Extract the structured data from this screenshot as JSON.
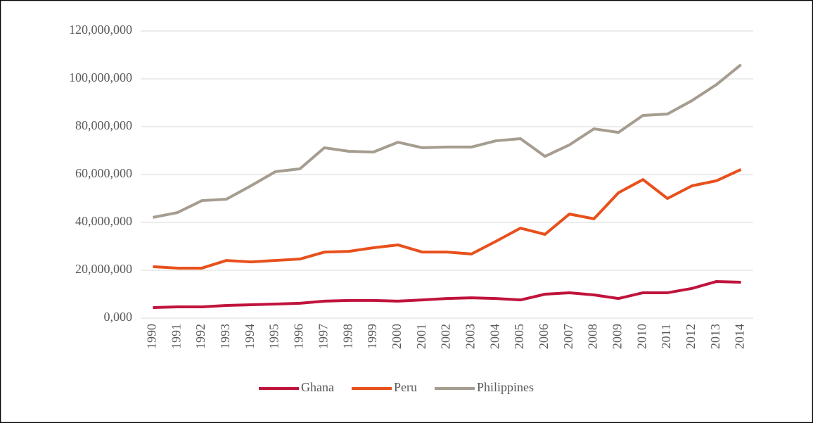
{
  "chart_data": {
    "type": "line",
    "categories": [
      "1990",
      "1991",
      "1992",
      "1993",
      "1994",
      "1995",
      "1996",
      "1997",
      "1998",
      "1999",
      "2000",
      "2001",
      "2002",
      "2003",
      "2004",
      "2005",
      "2006",
      "2007",
      "2008",
      "2009",
      "2010",
      "2011",
      "2012",
      "2013",
      "2014"
    ],
    "series": [
      {
        "name": "Ghana",
        "color": "#c0143c",
        "values": [
          4400000,
          4700000,
          4700000,
          5300000,
          5600000,
          5900000,
          6200000,
          7100000,
          7400000,
          7400000,
          7100000,
          7600000,
          8200000,
          8500000,
          8200000,
          7600000,
          10000000,
          10600000,
          9700000,
          8200000,
          10600000,
          10600000,
          12400000,
          15300000,
          15000000
        ]
      },
      {
        "name": "Peru",
        "color": "#e8501c",
        "values": [
          21500000,
          20900000,
          20900000,
          24100000,
          23500000,
          24100000,
          24700000,
          27600000,
          27900000,
          29400000,
          30600000,
          27600000,
          27600000,
          26800000,
          32100000,
          37600000,
          35000000,
          43500000,
          41500000,
          52400000,
          57900000,
          50000000,
          55300000,
          57400000,
          62100000
        ]
      },
      {
        "name": "Philippines",
        "color": "#a59d8f",
        "values": [
          42100000,
          44100000,
          49100000,
          49700000,
          55300000,
          61200000,
          62400000,
          71200000,
          69700000,
          69400000,
          73500000,
          71200000,
          71500000,
          71500000,
          74100000,
          75000000,
          67600000,
          72400000,
          79100000,
          77600000,
          84700000,
          85300000,
          90900000,
          97600000,
          105900000
        ]
      }
    ],
    "ylim": [
      0,
      120000000
    ],
    "yticks": [
      {
        "value": 0,
        "label": "0,000"
      },
      {
        "value": 20000000,
        "label": "20,000,000"
      },
      {
        "value": 40000000,
        "label": "40,000,000"
      },
      {
        "value": 60000000,
        "label": "60,000,000"
      },
      {
        "value": 80000000,
        "label": "80,000,000"
      },
      {
        "value": 100000000,
        "label": "100,000,000"
      },
      {
        "value": 120000000,
        "label": "120,000,000"
      }
    ],
    "grid": true,
    "legend": "bottom"
  }
}
